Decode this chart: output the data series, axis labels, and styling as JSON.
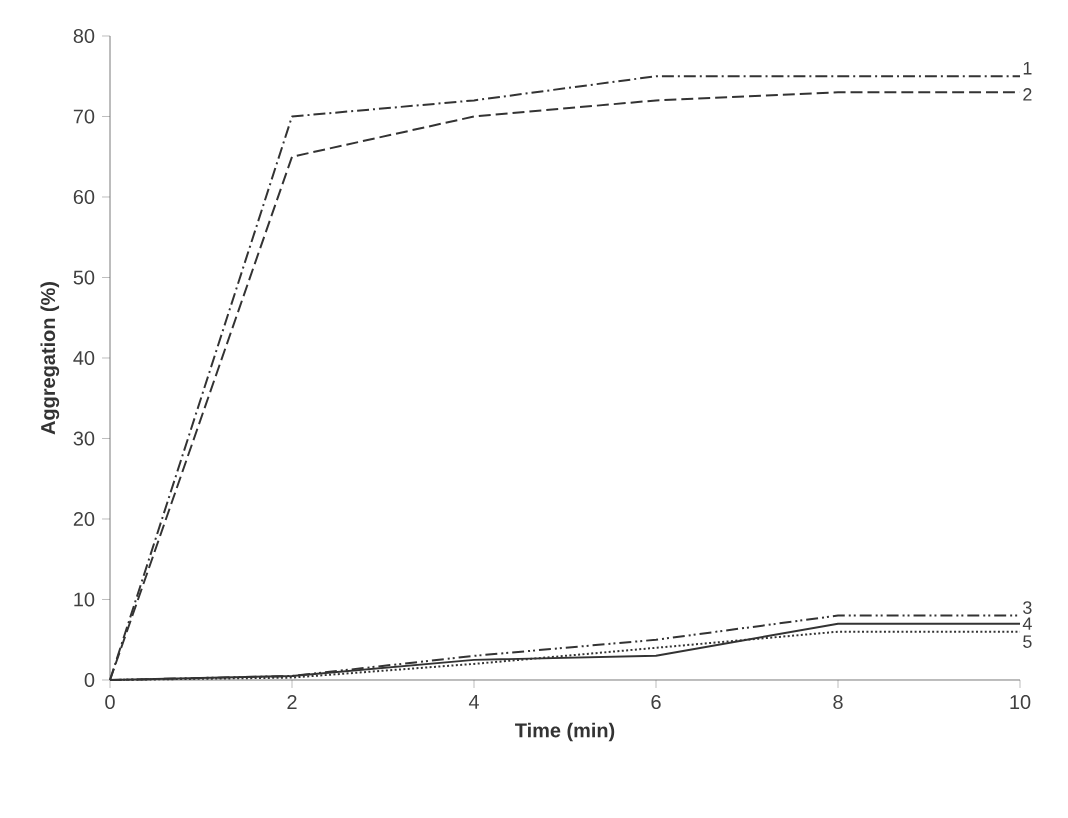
{
  "chart_data": {
    "type": "line",
    "xlabel": "Time (min)",
    "ylabel": "Aggregation (%)",
    "x": [
      0,
      2,
      4,
      6,
      8,
      10
    ],
    "series": [
      {
        "name": "1",
        "color": "#333333",
        "line_style": "dashdot",
        "values": [
          0,
          70,
          72,
          75,
          75,
          75
        ]
      },
      {
        "name": "2",
        "color": "#333333",
        "line_style": "dashed",
        "values": [
          0,
          65,
          70,
          72,
          73,
          73
        ]
      },
      {
        "name": "3",
        "color": "#333333",
        "line_style": "dashdotdot",
        "values": [
          0,
          0.5,
          3,
          5,
          8,
          8
        ]
      },
      {
        "name": "4",
        "color": "#333333",
        "line_style": "solid",
        "values": [
          0,
          0.5,
          2.5,
          3,
          7,
          7
        ]
      },
      {
        "name": "5",
        "color": "#333333",
        "line_style": "dotted",
        "values": [
          0,
          0.3,
          2,
          4,
          6,
          6
        ]
      }
    ],
    "xlim": [
      0,
      10
    ],
    "ylim": [
      0,
      80
    ],
    "xticks": [
      0,
      2,
      4,
      6,
      8,
      10
    ],
    "yticks": [
      0,
      10,
      20,
      30,
      40,
      50,
      60,
      70,
      80
    ],
    "grid": false,
    "marker": "none"
  }
}
